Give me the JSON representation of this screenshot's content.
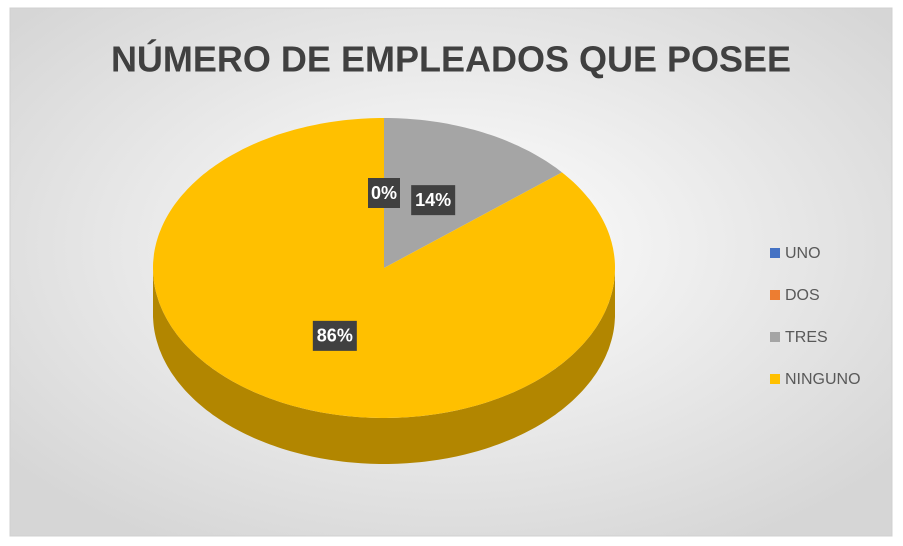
{
  "chart_data": {
    "type": "pie",
    "title": "NÚMERO DE EMPLEADOS QUE POSEE",
    "categories": [
      "UNO",
      "DOS",
      "TRES",
      "NINGUNO"
    ],
    "values": [
      0,
      0,
      14,
      86
    ],
    "value_labels": [
      "0%",
      "0%",
      "14%",
      "86%"
    ],
    "colors": [
      "#4472c4",
      "#ed7d31",
      "#a5a5a5",
      "#ffc000"
    ],
    "legend": "right"
  }
}
